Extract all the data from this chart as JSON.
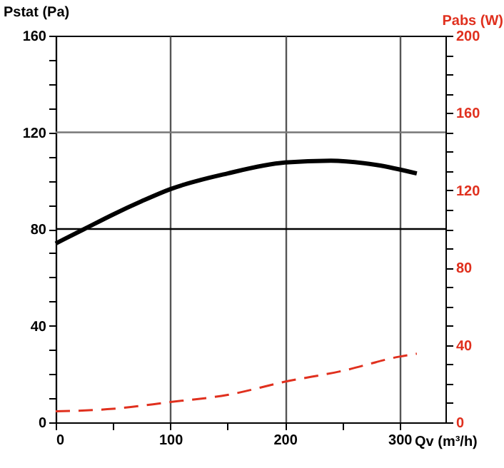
{
  "chart_data": {
    "type": "line",
    "xlabel": "Qv (m³/h)",
    "ylabel": "Pstat (Pa)",
    "y2label": "Pabs (W)",
    "xlim": [
      0,
      340
    ],
    "xticks": [
      0,
      {
        "value": 50,
        "label": null
      },
      100,
      {
        "value": 150,
        "label": null
      },
      200,
      {
        "value": 250,
        "label": null
      },
      300
    ],
    "ylim": [
      0,
      160
    ],
    "yticks": [
      0,
      {
        "value": 10,
        "label": null
      },
      {
        "value": 20,
        "label": null
      },
      {
        "value": 30,
        "label": null
      },
      40,
      {
        "value": 50,
        "label": null
      },
      {
        "value": 60,
        "label": null
      },
      {
        "value": 70,
        "label": null
      },
      80,
      {
        "value": 90,
        "label": null
      },
      {
        "value": 100,
        "label": null
      },
      {
        "value": 110,
        "label": null
      },
      120,
      {
        "value": 130,
        "label": null
      },
      {
        "value": 140,
        "label": null
      },
      {
        "value": 150,
        "label": null
      },
      160
    ],
    "y2lim": [
      0,
      200
    ],
    "y2ticks": [
      0,
      {
        "value": 10,
        "label": null
      },
      {
        "value": 20,
        "label": null
      },
      {
        "value": 30,
        "label": null
      },
      40,
      {
        "value": 50,
        "label": null
      },
      {
        "value": 60,
        "label": null
      },
      {
        "value": 70,
        "label": null
      },
      80,
      {
        "value": 90,
        "label": null
      },
      {
        "value": 100,
        "label": null
      },
      {
        "value": 110,
        "label": null
      },
      120,
      {
        "value": 130,
        "label": null
      },
      {
        "value": 140,
        "label": null
      },
      {
        "value": 150,
        "label": null
      },
      160,
      {
        "value": 170,
        "label": null
      },
      {
        "value": 180,
        "label": null
      },
      {
        "value": 190,
        "label": null
      },
      200
    ],
    "grid": "x",
    "marker": "none",
    "ref_lines": [
      {
        "axis": "y",
        "value": 80,
        "color": "#000000"
      },
      {
        "axis": "y",
        "value": 120,
        "color": "#777777"
      }
    ],
    "series": [
      {
        "color": "#000000",
        "line_style": "solid",
        "x": [
          0,
          25,
          50,
          75,
          100,
          150,
          200,
          240,
          280,
          315
        ],
        "values": [
          74,
          80,
          86,
          91.5,
          96.5,
          103,
          107.5,
          108.3,
          106.5,
          103
        ]
      },
      {
        "color": "#e0301e",
        "line_style": "dashed",
        "axis": "y2",
        "x": [
          0,
          50,
          100,
          150,
          200,
          250,
          300,
          315
        ],
        "values": [
          5.7,
          7,
          10.5,
          14.2,
          21,
          26.6,
          34,
          35.5
        ]
      }
    ]
  }
}
